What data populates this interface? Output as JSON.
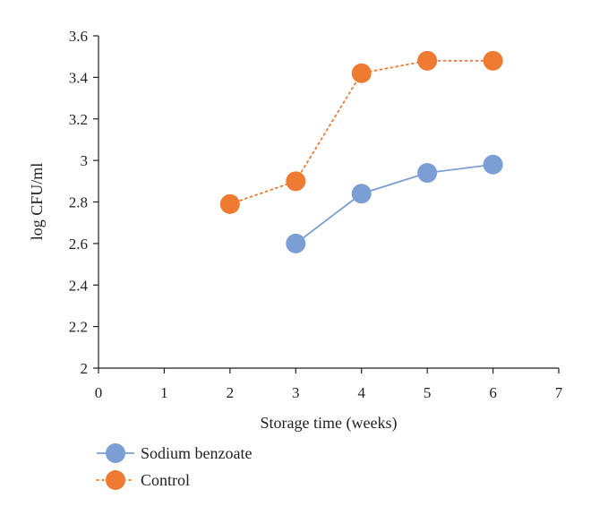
{
  "chart_data": {
    "type": "line",
    "xlabel": "Storage time (weeks)",
    "ylabel": "log CFU/ml",
    "xlim": [
      0,
      7
    ],
    "ylim": [
      2,
      3.6
    ],
    "xticks": [
      "0",
      "1",
      "2",
      "3",
      "4",
      "5",
      "6",
      "7"
    ],
    "yticks": [
      "2",
      "2.2",
      "2.4",
      "2.6",
      "2.8",
      "3",
      "3.2",
      "3.4",
      "3.6"
    ],
    "grid": false,
    "legend_position": "bottom-left",
    "series": [
      {
        "name": "Sodium benzoate",
        "color": "#7b9fd4",
        "line_style": "solid",
        "x": [
          3,
          4,
          5,
          6
        ],
        "y": [
          2.6,
          2.84,
          2.94,
          2.98
        ]
      },
      {
        "name": "Control",
        "color": "#ef7a31",
        "line_style": "dotted",
        "x": [
          2,
          3,
          4,
          5,
          6
        ],
        "y": [
          2.79,
          2.9,
          3.42,
          3.48,
          3.48
        ]
      }
    ]
  }
}
